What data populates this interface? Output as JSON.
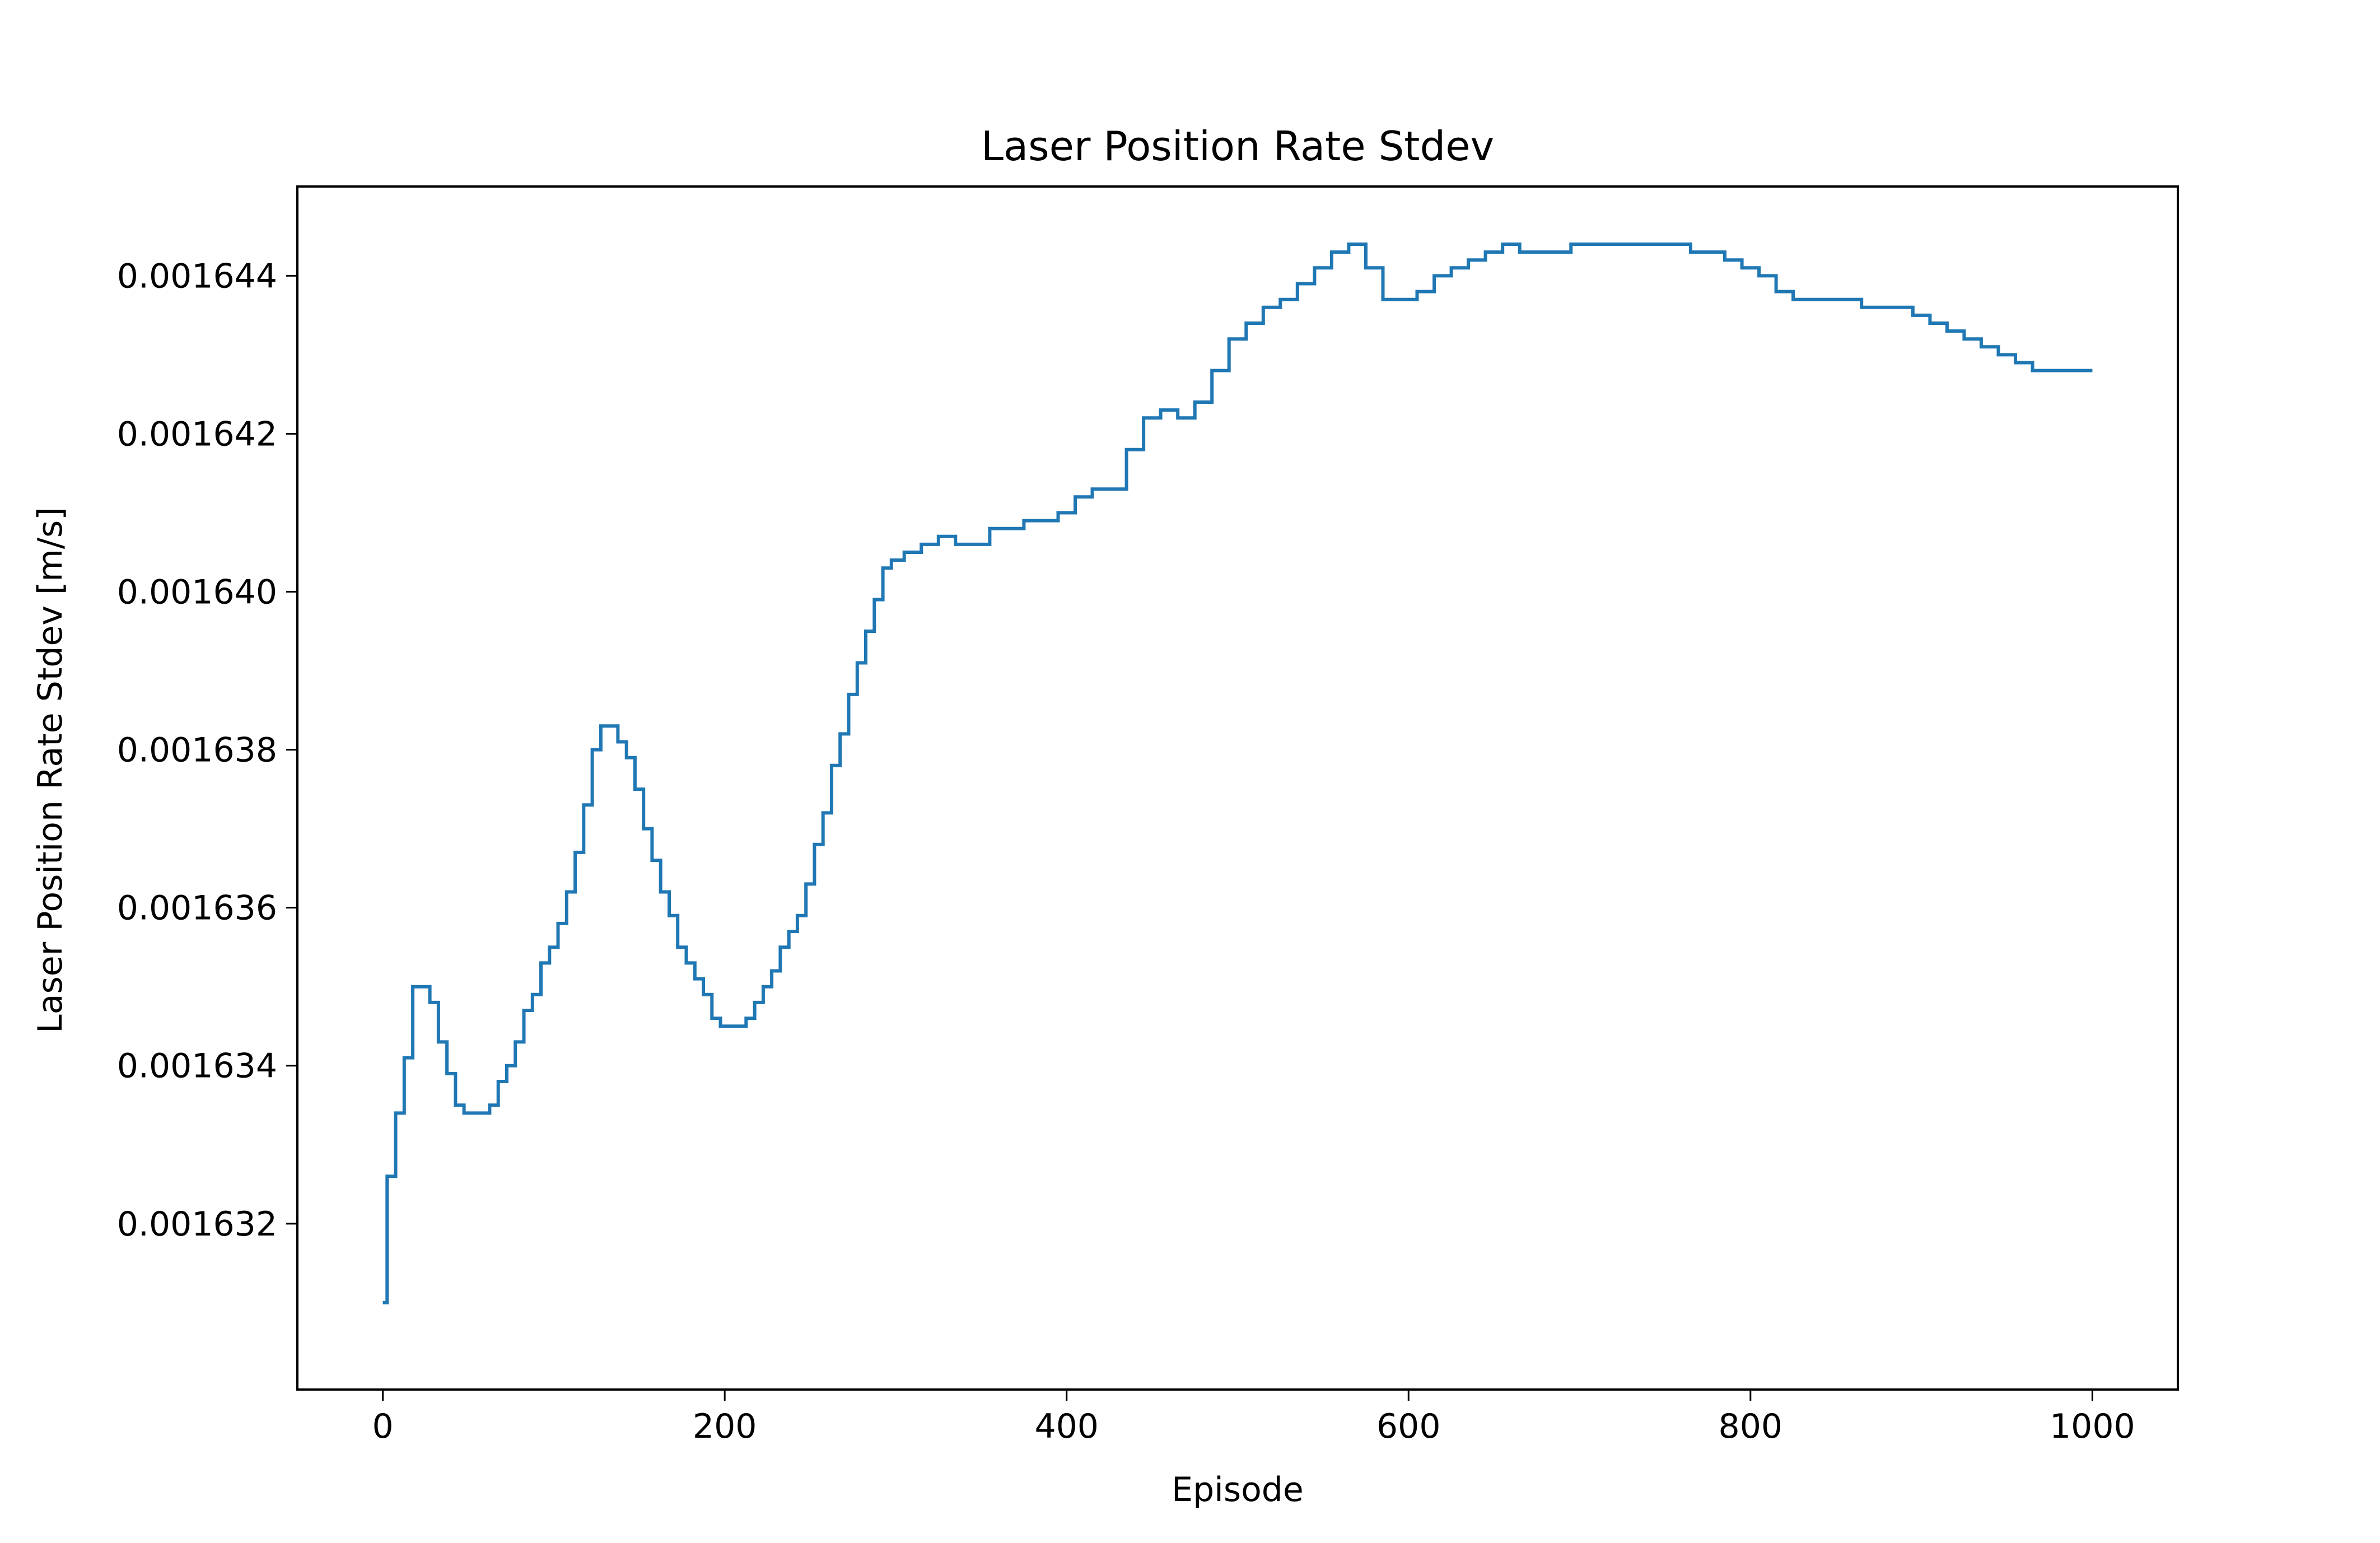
{
  "chart_data": {
    "type": "line",
    "title": "Laser Position Rate Stdev",
    "xlabel": "Episode",
    "ylabel": "Laser Position Rate Stdev [m/s]",
    "xlim": [
      -50,
      1050
    ],
    "ylim": [
      0.0016299,
      0.00164513
    ],
    "xticks": [
      0,
      200,
      400,
      600,
      800,
      1000
    ],
    "xtick_labels": [
      "0",
      "200",
      "400",
      "600",
      "800",
      "1000"
    ],
    "yticks": [
      0.001632,
      0.001634,
      0.001636,
      0.001638,
      0.00164,
      0.001642,
      0.001644
    ],
    "ytick_labels": [
      "0.001632",
      "0.001634",
      "0.001636",
      "0.001638",
      "0.001640",
      "0.001642",
      "0.001644"
    ],
    "grid": false,
    "legend": "none",
    "color": "#1f77b4",
    "series": [
      {
        "x": [
          0,
          5,
          10,
          15,
          20,
          25,
          30,
          35,
          40,
          45,
          50,
          55,
          60,
          65,
          70,
          75,
          80,
          85,
          90,
          95,
          100,
          105,
          110,
          115,
          120,
          125,
          130,
          135,
          140,
          145,
          150,
          155,
          160,
          165,
          170,
          175,
          180,
          185,
          190,
          195,
          200,
          205,
          210,
          215,
          220,
          225,
          230,
          235,
          240,
          245,
          250,
          255,
          260,
          265,
          270,
          275,
          280,
          285,
          290,
          295,
          300,
          310,
          320,
          330,
          340,
          350,
          360,
          370,
          380,
          390,
          400,
          410,
          420,
          430,
          440,
          450,
          460,
          470,
          480,
          490,
          500,
          510,
          520,
          530,
          540,
          550,
          560,
          570,
          580,
          590,
          600,
          610,
          620,
          630,
          640,
          650,
          660,
          670,
          680,
          690,
          700,
          710,
          720,
          730,
          740,
          750,
          760,
          770,
          780,
          790,
          800,
          810,
          820,
          830,
          840,
          850,
          860,
          870,
          880,
          890,
          900,
          910,
          920,
          930,
          940,
          950,
          960,
          970,
          980,
          990,
          1000
        ],
        "y": [
          0.001631,
          0.0016326,
          0.0016334,
          0.0016341,
          0.001635,
          0.001635,
          0.0016348,
          0.0016343,
          0.0016339,
          0.0016335,
          0.0016334,
          0.0016334,
          0.0016334,
          0.0016335,
          0.0016338,
          0.001634,
          0.0016343,
          0.0016347,
          0.0016349,
          0.0016353,
          0.0016355,
          0.0016358,
          0.0016362,
          0.0016367,
          0.0016373,
          0.001638,
          0.0016383,
          0.0016383,
          0.0016381,
          0.0016379,
          0.0016375,
          0.001637,
          0.0016366,
          0.0016362,
          0.0016359,
          0.0016355,
          0.0016353,
          0.0016351,
          0.0016349,
          0.0016346,
          0.0016345,
          0.0016345,
          0.0016345,
          0.0016346,
          0.0016348,
          0.001635,
          0.0016352,
          0.0016355,
          0.0016357,
          0.0016359,
          0.0016363,
          0.0016368,
          0.0016372,
          0.0016378,
          0.0016382,
          0.0016387,
          0.0016391,
          0.0016395,
          0.0016399,
          0.0016403,
          0.0016404,
          0.0016405,
          0.0016406,
          0.0016407,
          0.0016406,
          0.0016406,
          0.0016408,
          0.0016408,
          0.0016409,
          0.0016409,
          0.001641,
          0.0016412,
          0.0016413,
          0.0016413,
          0.0016418,
          0.0016422,
          0.0016423,
          0.0016422,
          0.0016424,
          0.0016428,
          0.0016432,
          0.0016434,
          0.0016436,
          0.0016437,
          0.0016439,
          0.0016441,
          0.0016443,
          0.0016444,
          0.0016441,
          0.0016437,
          0.0016437,
          0.0016438,
          0.001644,
          0.0016441,
          0.0016442,
          0.0016443,
          0.0016444,
          0.0016443,
          0.0016443,
          0.0016443,
          0.0016444,
          0.0016444,
          0.0016444,
          0.0016444,
          0.0016444,
          0.0016444,
          0.0016444,
          0.0016443,
          0.0016443,
          0.0016442,
          0.0016441,
          0.001644,
          0.0016438,
          0.0016437,
          0.0016437,
          0.0016437,
          0.0016437,
          0.0016436,
          0.0016436,
          0.0016436,
          0.0016435,
          0.0016434,
          0.0016433,
          0.0016432,
          0.0016431,
          0.001643,
          0.0016429,
          0.0016428,
          0.0016428,
          0.0016428,
          0.0016428
        ]
      }
    ]
  }
}
